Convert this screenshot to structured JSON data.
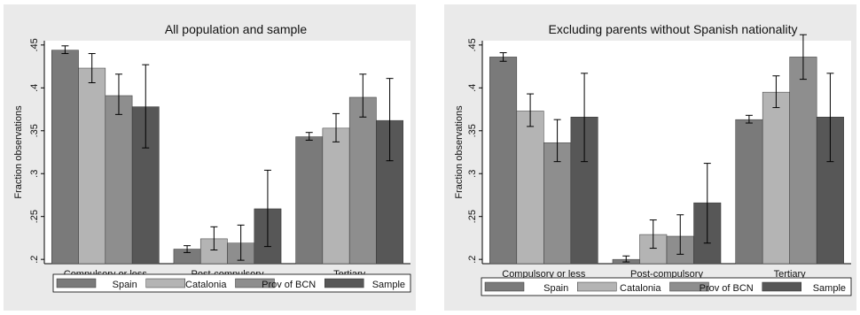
{
  "chart_data": [
    {
      "type": "bar",
      "title": "All population and sample",
      "xlabel": "",
      "ylabel": "Fraction observations",
      "ylim": [
        0.195,
        0.455
      ],
      "yticks": [
        0.2,
        0.25,
        0.3,
        0.35,
        0.4,
        0.45
      ],
      "ytick_labels": [
        ".2",
        ".25",
        ".3",
        ".35",
        ".4",
        ".45"
      ],
      "categories": [
        "Compulsory or less",
        "Post-compulsory",
        "Tertiary"
      ],
      "series": [
        {
          "name": "Spain",
          "values": [
            0.444,
            0.212,
            0.343
          ],
          "ci_low": [
            0.44,
            0.208,
            0.339
          ],
          "ci_high": [
            0.449,
            0.216,
            0.348
          ],
          "color": "#7a7a7a"
        },
        {
          "name": "Catalonia",
          "values": [
            0.423,
            0.224,
            0.353
          ],
          "ci_low": [
            0.406,
            0.211,
            0.337
          ],
          "ci_high": [
            0.44,
            0.238,
            0.37
          ],
          "color": "#b4b4b4"
        },
        {
          "name": "Prov of BCN",
          "values": [
            0.391,
            0.219,
            0.389
          ],
          "ci_low": [
            0.369,
            0.199,
            0.366
          ],
          "ci_high": [
            0.416,
            0.24,
            0.416
          ],
          "color": "#8e8e8e"
        },
        {
          "name": "Sample",
          "values": [
            0.378,
            0.259,
            0.362
          ],
          "ci_low": [
            0.33,
            0.215,
            0.315
          ],
          "ci_high": [
            0.427,
            0.304,
            0.411
          ],
          "color": "#575757"
        }
      ],
      "legend": "bottom",
      "grid": false
    },
    {
      "type": "bar",
      "title": "Excluding parents without Spanish nationality",
      "xlabel": "",
      "ylabel": "Fraction observations",
      "ylim": [
        0.195,
        0.455
      ],
      "yticks": [
        0.2,
        0.25,
        0.3,
        0.35,
        0.4,
        0.45
      ],
      "ytick_labels": [
        ".2",
        ".25",
        ".3",
        ".35",
        ".4",
        ".45"
      ],
      "categories": [
        "Compulsory or less",
        "Post-compulsory",
        "Tertiary"
      ],
      "series": [
        {
          "name": "Spain",
          "values": [
            0.436,
            0.2,
            0.363
          ],
          "ci_low": [
            0.431,
            0.197,
            0.359
          ],
          "ci_high": [
            0.441,
            0.204,
            0.368
          ],
          "color": "#7a7a7a"
        },
        {
          "name": "Catalonia",
          "values": [
            0.373,
            0.229,
            0.395
          ],
          "ci_low": [
            0.355,
            0.213,
            0.377
          ],
          "ci_high": [
            0.393,
            0.246,
            0.414
          ],
          "color": "#b4b4b4"
        },
        {
          "name": "Prov of BCN",
          "values": [
            0.336,
            0.227,
            0.436
          ],
          "ci_low": [
            0.314,
            0.206,
            0.41
          ],
          "ci_high": [
            0.363,
            0.252,
            0.462
          ],
          "color": "#8e8e8e"
        },
        {
          "name": "Sample",
          "values": [
            0.366,
            0.266,
            0.366
          ],
          "ci_low": [
            0.314,
            0.219,
            0.314
          ],
          "ci_high": [
            0.417,
            0.312,
            0.417
          ],
          "color": "#575757"
        }
      ],
      "legend": "bottom",
      "grid": false
    }
  ]
}
